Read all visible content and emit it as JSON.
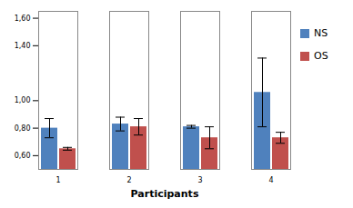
{
  "chart_data": {
    "type": "bar",
    "x_label": "Participants",
    "categories": [
      "1",
      "2",
      "3",
      "4"
    ],
    "series": [
      {
        "name": "NS",
        "color": "#4f81bd",
        "values": [
          0.8,
          0.83,
          0.81,
          1.06
        ],
        "errors": [
          0.07,
          0.05,
          0.01,
          0.25
        ]
      },
      {
        "name": "OS",
        "color": "#c0504d",
        "values": [
          0.65,
          0.81,
          0.73,
          0.73
        ],
        "errors": [
          0.01,
          0.06,
          0.08,
          0.04
        ]
      }
    ],
    "ylim": [
      0.5,
      1.65
    ],
    "yticks": [
      {
        "value": 0.6,
        "label": "0,60"
      },
      {
        "value": 0.8,
        "label": "0,80"
      },
      {
        "value": 1.0,
        "label": "1,00"
      },
      {
        "value": 1.4,
        "label": "1,40"
      },
      {
        "value": 1.6,
        "label": "1,60"
      }
    ],
    "legend": "right"
  }
}
